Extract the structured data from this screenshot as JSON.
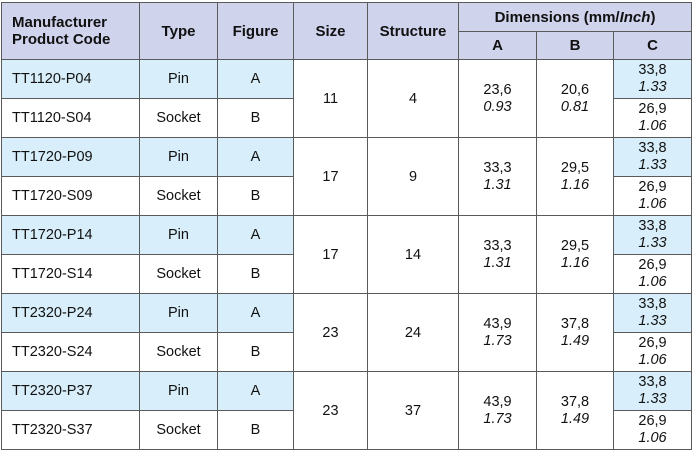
{
  "header": {
    "product_code_line1": "Manufacturer",
    "product_code_line2": "Product Code",
    "type": "Type",
    "figure": "Figure",
    "size": "Size",
    "structure": "Structure",
    "dimensions_prefix": "Dimensions (mm/",
    "dimensions_italic": "Inch",
    "dimensions_suffix": ")",
    "col_a": "A",
    "col_b": "B",
    "col_c": "C"
  },
  "groups": [
    {
      "size": "11",
      "structure": "4",
      "a_mm": "23,6",
      "a_in": "0.93",
      "b_mm": "20,6",
      "b_in": "0.81",
      "rows": [
        {
          "code": "TT1120-P04",
          "type": "Pin",
          "figure": "A",
          "c_mm": "33,8",
          "c_in": "1.33"
        },
        {
          "code": "TT1120-S04",
          "type": "Socket",
          "figure": "B",
          "c_mm": "26,9",
          "c_in": "1.06"
        }
      ]
    },
    {
      "size": "17",
      "structure": "9",
      "a_mm": "33,3",
      "a_in": "1.31",
      "b_mm": "29,5",
      "b_in": "1.16",
      "rows": [
        {
          "code": "TT1720-P09",
          "type": "Pin",
          "figure": "A",
          "c_mm": "33,8",
          "c_in": "1.33"
        },
        {
          "code": "TT1720-S09",
          "type": "Socket",
          "figure": "B",
          "c_mm": "26,9",
          "c_in": "1.06"
        }
      ]
    },
    {
      "size": "17",
      "structure": "14",
      "a_mm": "33,3",
      "a_in": "1.31",
      "b_mm": "29,5",
      "b_in": "1.16",
      "rows": [
        {
          "code": "TT1720-P14",
          "type": "Pin",
          "figure": "A",
          "c_mm": "33,8",
          "c_in": "1.33"
        },
        {
          "code": "TT1720-S14",
          "type": "Socket",
          "figure": "B",
          "c_mm": "26,9",
          "c_in": "1.06"
        }
      ]
    },
    {
      "size": "23",
      "structure": "24",
      "a_mm": "43,9",
      "a_in": "1.73",
      "b_mm": "37,8",
      "b_in": "1.49",
      "rows": [
        {
          "code": "TT2320-P24",
          "type": "Pin",
          "figure": "A",
          "c_mm": "33,8",
          "c_in": "1.33"
        },
        {
          "code": "TT2320-S24",
          "type": "Socket",
          "figure": "B",
          "c_mm": "26,9",
          "c_in": "1.06"
        }
      ]
    },
    {
      "size": "23",
      "structure": "37",
      "a_mm": "43,9",
      "a_in": "1.73",
      "b_mm": "37,8",
      "b_in": "1.49",
      "rows": [
        {
          "code": "TT2320-P37",
          "type": "Pin",
          "figure": "A",
          "c_mm": "33,8",
          "c_in": "1.33"
        },
        {
          "code": "TT2320-S37",
          "type": "Socket",
          "figure": "B",
          "c_mm": "26,9",
          "c_in": "1.06"
        }
      ]
    }
  ],
  "colors": {
    "header_bg": "#cfd3ec",
    "pin_row_bg": "#d8effb",
    "border": "#5a5a5a"
  }
}
